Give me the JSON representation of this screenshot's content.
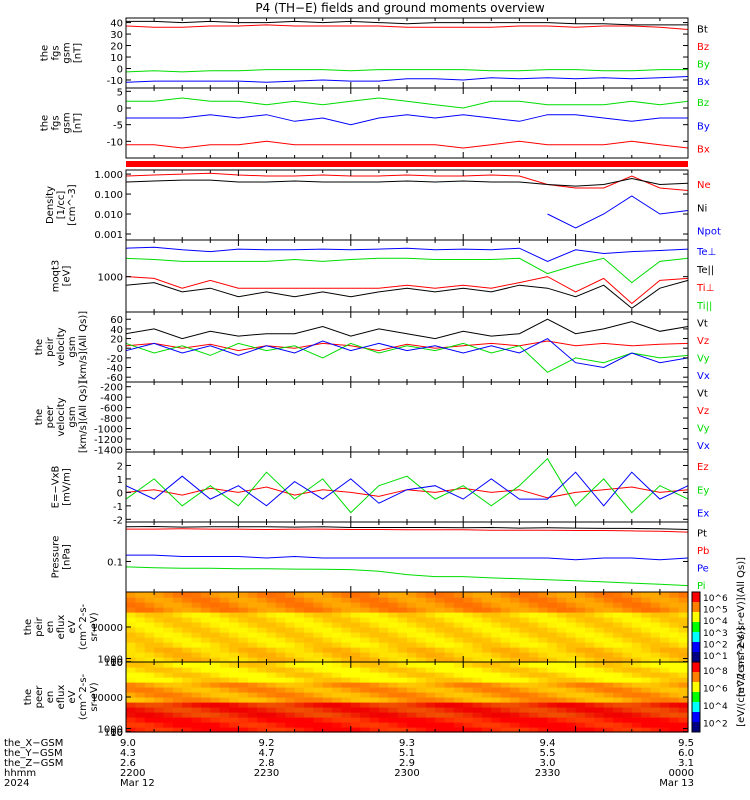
{
  "title": "P4 (TH−E) fields and ground moments overview",
  "colors": {
    "black": "#000000",
    "red": "#ff0000",
    "green": "#00dd00",
    "blue": "#0000ff"
  },
  "chart_data": [
    {
      "type": "line",
      "ylabel": [
        "the",
        "fgs",
        "gsm",
        "[nT]"
      ],
      "yticks": [
        -10,
        0,
        10,
        20,
        30,
        40
      ],
      "ylim": [
        -17,
        44
      ],
      "series": [
        {
          "name": "Bt",
          "color": "black",
          "y": [
            41,
            41,
            40,
            41,
            40,
            40,
            41,
            40,
            41,
            40,
            39,
            40,
            40,
            40,
            40,
            40,
            39,
            39,
            38,
            38,
            38
          ]
        },
        {
          "name": "Bz",
          "color": "red",
          "y": [
            37,
            36,
            36,
            37,
            37,
            38,
            37,
            37,
            37,
            37,
            36,
            36,
            36,
            36,
            37,
            37,
            36,
            37,
            37,
            36,
            34
          ]
        },
        {
          "name": "By",
          "color": "green",
          "y": [
            -3,
            -2,
            -3,
            -2,
            -2,
            -1,
            -1,
            -1,
            -2,
            -1,
            -1,
            -1,
            -1,
            -2,
            -2,
            -1,
            -1,
            -2,
            -2,
            -1,
            -1
          ]
        },
        {
          "name": "Bx",
          "color": "blue",
          "y": [
            -12,
            -11,
            -11,
            -11,
            -11,
            -12,
            -11,
            -10,
            -11,
            -11,
            -9,
            -9,
            -10,
            -8,
            -9,
            -8,
            -9,
            -8,
            -9,
            -8,
            -7
          ]
        }
      ]
    },
    {
      "type": "line",
      "ylabel": [
        "the",
        "fgs",
        "gsm",
        "[nT]"
      ],
      "yticks": [
        -10,
        -5,
        0,
        5
      ],
      "ylim": [
        -15,
        6
      ],
      "series": [
        {
          "name": "Bz",
          "color": "green",
          "y": [
            2,
            2,
            3,
            2,
            2,
            1,
            2,
            1,
            2,
            3,
            2,
            1,
            0,
            2,
            2,
            1,
            1,
            1,
            2,
            1,
            2
          ]
        },
        {
          "name": "By",
          "color": "blue",
          "y": [
            -3,
            -3,
            -3,
            -2,
            -3,
            -2,
            -4,
            -3,
            -5,
            -3,
            -2,
            -3,
            -2,
            -3,
            -4,
            -2,
            -2,
            -3,
            -4,
            -3,
            -3
          ]
        },
        {
          "name": "Bx",
          "color": "red",
          "y": [
            -11,
            -11,
            -12,
            -11,
            -11,
            -10,
            -11,
            -11,
            -11,
            -11,
            -11,
            -11,
            -12,
            -11,
            -10,
            -11,
            -11,
            -11,
            -10,
            -11,
            -12
          ]
        }
      ]
    },
    {
      "type": "line",
      "log": true,
      "ylabel": [
        "Density",
        "[1/cc]",
        "[cm^-3]"
      ],
      "yticks": [
        0.001,
        0.01,
        0.1,
        1.0
      ],
      "yticklabels": [
        "0.001",
        "0.010",
        "0.100",
        "1.000"
      ],
      "ylim": [
        0.0005,
        1.6
      ],
      "series": [
        {
          "name": "Ne",
          "color": "red",
          "y": [
            0.8,
            0.9,
            1.0,
            1.1,
            0.9,
            0.8,
            0.8,
            0.9,
            0.8,
            0.8,
            0.9,
            0.8,
            0.8,
            0.9,
            0.8,
            0.3,
            0.2,
            0.2,
            0.8,
            0.2,
            0.15
          ]
        },
        {
          "name": "Ni",
          "color": "black",
          "y": [
            0.4,
            0.45,
            0.5,
            0.5,
            0.4,
            0.4,
            0.45,
            0.4,
            0.4,
            0.4,
            0.45,
            0.4,
            0.45,
            0.4,
            0.4,
            0.3,
            0.25,
            0.3,
            0.6,
            0.3,
            0.35
          ]
        },
        {
          "name": "Npot",
          "color": "blue",
          "y": [
            null,
            null,
            null,
            null,
            null,
            null,
            null,
            null,
            null,
            null,
            null,
            null,
            null,
            null,
            null,
            0.01,
            0.002,
            0.01,
            0.08,
            0.01,
            0.015
          ]
        }
      ]
    },
    {
      "type": "line",
      "log": true,
      "ylabel": [
        "moqt3",
        "[eV]"
      ],
      "yticks": [
        1000
      ],
      "yticklabels": [
        "1000"
      ],
      "ylim": [
        120,
        9000
      ],
      "series": [
        {
          "name": "Te⊥",
          "color": "blue",
          "y": [
            5500,
            5800,
            5000,
            4500,
            5200,
            5000,
            5000,
            5200,
            5000,
            5200,
            5500,
            5000,
            5200,
            5000,
            5500,
            2500,
            5000,
            4000,
            4500,
            4800,
            5200
          ]
        },
        {
          "name": "Te||",
          "color": "black",
          "y": [
            600,
            700,
            400,
            500,
            300,
            400,
            300,
            400,
            300,
            400,
            500,
            400,
            500,
            400,
            600,
            500,
            300,
            600,
            150,
            500,
            800
          ]
        },
        {
          "name": "Ti⊥",
          "color": "red",
          "y": [
            1000,
            900,
            500,
            800,
            500,
            500,
            500,
            500,
            500,
            500,
            600,
            500,
            600,
            500,
            700,
            1000,
            400,
            900,
            200,
            800,
            900
          ]
        },
        {
          "name": "Ti||",
          "color": "green",
          "y": [
            3000,
            2800,
            2500,
            2500,
            2500,
            2500,
            2800,
            2500,
            2800,
            3000,
            3000,
            2800,
            2800,
            2800,
            3000,
            1200,
            2000,
            3000,
            700,
            2500,
            3000
          ]
        }
      ]
    },
    {
      "type": "line",
      "ylabel": [
        "the",
        "peir",
        "velocity",
        "gsm",
        "[km/s](All Qs)]"
      ],
      "yticks": [
        -60,
        -40,
        -20,
        0,
        20,
        40,
        60
      ],
      "ylim": [
        -70,
        75
      ],
      "series": [
        {
          "name": "Vt",
          "color": "black",
          "y": [
            30,
            40,
            20,
            35,
            25,
            30,
            30,
            45,
            25,
            40,
            30,
            20,
            35,
            25,
            30,
            60,
            30,
            40,
            55,
            35,
            45
          ]
        },
        {
          "name": "Vz",
          "color": "red",
          "y": [
            5,
            10,
            0,
            8,
            -5,
            5,
            0,
            10,
            5,
            -5,
            8,
            0,
            5,
            10,
            5,
            15,
            5,
            10,
            5,
            8,
            10
          ]
        },
        {
          "name": "Vy",
          "color": "green",
          "y": [
            10,
            -10,
            5,
            -15,
            10,
            -5,
            5,
            -20,
            10,
            -10,
            5,
            -5,
            10,
            -10,
            5,
            -50,
            -20,
            -30,
            -10,
            -20,
            -15
          ]
        },
        {
          "name": "Vx",
          "color": "blue",
          "y": [
            -5,
            10,
            -10,
            5,
            -15,
            5,
            -10,
            15,
            -5,
            10,
            -5,
            5,
            -10,
            5,
            -10,
            20,
            -30,
            -40,
            -10,
            -30,
            -20
          ]
        }
      ]
    },
    {
      "type": "line",
      "ylabel": [
        "the",
        "peer",
        "velocity",
        "gsm",
        "[km/s](All Qs)]"
      ],
      "yticks": [
        -1400,
        -1200,
        -1000,
        -800,
        -600,
        -400,
        -200
      ],
      "ylim": [
        -1450,
        -110
      ],
      "series": [
        {
          "name": "Vt",
          "color": "black",
          "y": []
        },
        {
          "name": "Vz",
          "color": "red",
          "y": []
        },
        {
          "name": "Vy",
          "color": "green",
          "y": []
        },
        {
          "name": "Vx",
          "color": "blue",
          "y": []
        }
      ]
    },
    {
      "type": "line",
      "ylabel": [
        "E=−VxB",
        "[mV/m]"
      ],
      "yticks": [
        -2,
        -1,
        0,
        1,
        2
      ],
      "ylim": [
        -2.2,
        3
      ],
      "series": [
        {
          "name": "Ez",
          "color": "red",
          "y": [
            0,
            0.2,
            -0.2,
            0.3,
            0,
            0.4,
            -0.2,
            0.2,
            0,
            -0.3,
            0.2,
            0,
            0.3,
            0,
            0.2,
            -0.4,
            0,
            0.2,
            0.4,
            0,
            0.2
          ]
        },
        {
          "name": "Ey",
          "color": "green",
          "y": [
            -0.5,
            1,
            -1,
            0.5,
            -1,
            1.5,
            -0.5,
            1,
            -1.5,
            0.5,
            1.2,
            -0.5,
            0.5,
            -1,
            0.5,
            2.5,
            -1,
            1,
            -1.5,
            0.5,
            -0.5
          ]
        },
        {
          "name": "Ex",
          "color": "blue",
          "y": [
            0.5,
            -0.5,
            1.2,
            -0.5,
            0.5,
            -1,
            0.8,
            -0.5,
            1,
            -0.8,
            0.2,
            0.5,
            -0.5,
            1,
            -0.5,
            -0.5,
            1.5,
            -1,
            1.5,
            -0.5,
            0.5
          ]
        }
      ]
    },
    {
      "type": "line",
      "log": true,
      "ylabel": [
        "Pressure",
        "[nPa]"
      ],
      "yticks": [
        0.1
      ],
      "yticklabels": [
        "0.1"
      ],
      "ylim": [
        0.02,
        0.8
      ],
      "series": [
        {
          "name": "Pt",
          "color": "black",
          "y": [
            0.62,
            0.63,
            0.61,
            0.62,
            0.62,
            0.62,
            0.61,
            0.62,
            0.6,
            0.6,
            0.6,
            0.6,
            0.59,
            0.6,
            0.58,
            0.59,
            0.58,
            0.57,
            0.57,
            0.56,
            0.54
          ]
        },
        {
          "name": "Pb",
          "color": "red",
          "y": [
            0.55,
            0.55,
            0.56,
            0.55,
            0.55,
            0.54,
            0.55,
            0.55,
            0.54,
            0.54,
            0.53,
            0.53,
            0.53,
            0.52,
            0.52,
            0.52,
            0.51,
            0.51,
            0.5,
            0.49,
            0.47
          ]
        },
        {
          "name": "Pe",
          "color": "blue",
          "y": [
            0.14,
            0.14,
            0.13,
            0.13,
            0.13,
            0.12,
            0.13,
            0.12,
            0.12,
            0.12,
            0.12,
            0.12,
            0.12,
            0.12,
            0.12,
            0.12,
            0.11,
            0.12,
            0.12,
            0.11,
            0.12
          ]
        },
        {
          "name": "Pi",
          "color": "green",
          "y": [
            0.075,
            0.072,
            0.07,
            0.07,
            0.068,
            0.068,
            0.067,
            0.066,
            0.065,
            0.06,
            0.05,
            0.045,
            0.045,
            0.042,
            0.04,
            0.038,
            0.036,
            0.034,
            0.032,
            0.03,
            0.028
          ]
        }
      ]
    },
    {
      "type": "heatmap",
      "ylabel": [
        "the",
        "peir",
        "en",
        "eflux",
        "eV",
        "(cm^2-s-",
        "sr-eV)"
      ],
      "yticks": [
        10,
        100,
        1000,
        10000
      ],
      "ylim": [
        6,
        20000
      ],
      "colorbar": {
        "label": "[eV/(cm^2-s-sr-eV)](All Qs)]",
        "ticks": [
          "10^1",
          "10^2",
          "10^3",
          "10^4",
          "10^5",
          "10^6"
        ]
      }
    },
    {
      "type": "heatmap",
      "ylabel": [
        "the",
        "peer",
        "en",
        "eflux",
        "eV",
        "(cm^2-s-",
        "sr-eV)"
      ],
      "yticks": [
        10,
        100,
        1000,
        10000
      ],
      "ylim": [
        6,
        20000
      ],
      "colorbar": {
        "label": "[eV/(cm^2-s-sr-eV)]",
        "ticks": [
          "10^2",
          "10^4",
          "10^6",
          "10^8"
        ]
      }
    }
  ],
  "x_axis": {
    "rows": [
      {
        "label": "the_X−GSM",
        "values": [
          "9.0",
          "9.2",
          "9.3",
          "9.4",
          "9.5"
        ]
      },
      {
        "label": "the_Y−GSM",
        "values": [
          "4.3",
          "4.7",
          "5.1",
          "5.5",
          "6.0"
        ]
      },
      {
        "label": "the_Z−GSM",
        "values": [
          "2.6",
          "2.8",
          "2.9",
          "3.0",
          "3.1"
        ]
      },
      {
        "label": "hhmm",
        "values": [
          "2200",
          "2230",
          "2300",
          "2330",
          "0000"
        ]
      },
      {
        "label": "2024",
        "values": [
          "Mar 12",
          "",
          "",
          "",
          "Mar 13"
        ]
      }
    ]
  }
}
